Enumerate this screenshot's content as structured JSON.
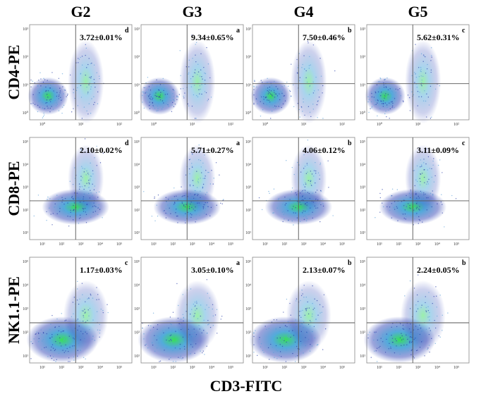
{
  "columns": [
    "G2",
    "G3",
    "G4",
    "G5"
  ],
  "rows": [
    {
      "label": "CD4-PE",
      "yticks": [
        "10³",
        "10²",
        "10¹",
        "10⁰"
      ],
      "xticks": [
        "10⁰",
        "10¹",
        "10²"
      ],
      "panels": [
        {
          "value": "3.72±0.01%",
          "letter": "d"
        },
        {
          "value": "9.34±0.65%",
          "letter": "a"
        },
        {
          "value": "7.50±0.46%",
          "letter": "b"
        },
        {
          "value": "5.62±0.31%",
          "letter": "c"
        }
      ]
    },
    {
      "label": "CD8-PE",
      "yticks": [
        "10⁵",
        "10⁴",
        "10³",
        "10²",
        "10¹"
      ],
      "xticks": [
        "10¹",
        "10²",
        "10³",
        "10⁴",
        "10⁵"
      ],
      "panels": [
        {
          "value": "2.10±0.02%",
          "letter": "d"
        },
        {
          "value": "5.71±0.27%",
          "letter": "a"
        },
        {
          "value": "4.06±0.12%",
          "letter": "b"
        },
        {
          "value": "3.11±0.09%",
          "letter": "c"
        }
      ]
    },
    {
      "label": "NK1.1-PE",
      "yticks": [
        "10⁵",
        "10⁴",
        "10³",
        "10²",
        "10¹"
      ],
      "xticks": [
        "10¹",
        "10²",
        "10³",
        "10⁴",
        "10⁵"
      ],
      "panels": [
        {
          "value": "1.17±0.03%",
          "letter": "c"
        },
        {
          "value": "3.05±0.10%",
          "letter": "a"
        },
        {
          "value": "2.13±0.07%",
          "letter": "b"
        },
        {
          "value": "2.24±0.05%",
          "letter": "b"
        }
      ]
    }
  ],
  "x_label": "CD3-FITC"
}
